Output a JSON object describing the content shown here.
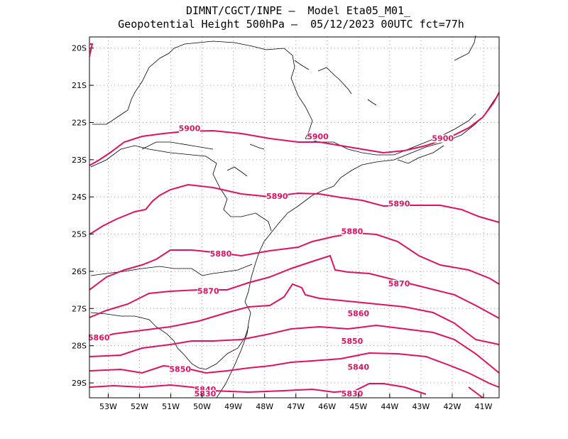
{
  "title": {
    "line1": "DIMNT/CGCT/INPE —  Model Eta05_M01_",
    "line2": "Geopotential Height 500hPa —  05/12/2023 00UTC fct=77h"
  },
  "map_data": {
    "variable": "Geopotential Height 500hPa",
    "units": "m",
    "contour_color": "#e0115f",
    "lon_range": [
      -53.6,
      -40.5
    ],
    "lat_range": [
      -29.4,
      -19.7
    ],
    "lon_ticks": [
      "53W",
      "52W",
      "51W",
      "50W",
      "49W",
      "48W",
      "47W",
      "46W",
      "45W",
      "44W",
      "43W",
      "42W",
      "41W"
    ],
    "lat_ticks": [
      "20S",
      "21S",
      "22S",
      "23S",
      "24S",
      "25S",
      "26S",
      "27S",
      "28S",
      "29S"
    ],
    "contour_labels": [
      {
        "text": "5900",
        "lon": -50.4,
        "lat": -22.23
      },
      {
        "text": "5900",
        "lon": -46.3,
        "lat": -22.45
      },
      {
        "text": "5900",
        "lon": -42.3,
        "lat": -22.5
      },
      {
        "text": "5890",
        "lon": -47.6,
        "lat": -24.05
      },
      {
        "text": "5890",
        "lon": -43.7,
        "lat": -24.25
      },
      {
        "text": "5880",
        "lon": -45.2,
        "lat": -25.0
      },
      {
        "text": "5880",
        "lon": -49.4,
        "lat": -25.6
      },
      {
        "text": "5870",
        "lon": -49.8,
        "lat": -26.6
      },
      {
        "text": "5870",
        "lon": -43.7,
        "lat": -26.4
      },
      {
        "text": "5860",
        "lon": -53.3,
        "lat": -27.85
      },
      {
        "text": "5860",
        "lon": -45.0,
        "lat": -27.2
      },
      {
        "text": "5850",
        "lon": -50.7,
        "lat": -28.7
      },
      {
        "text": "5850",
        "lon": -45.2,
        "lat": -27.95
      },
      {
        "text": "5840",
        "lon": -49.9,
        "lat": -29.25
      },
      {
        "text": "5840",
        "lon": -45.0,
        "lat": -28.65
      },
      {
        "text": "5830",
        "lon": -49.9,
        "lat": -29.8
      },
      {
        "text": "5830",
        "lon": -45.2,
        "lat": -29.95
      }
    ]
  }
}
